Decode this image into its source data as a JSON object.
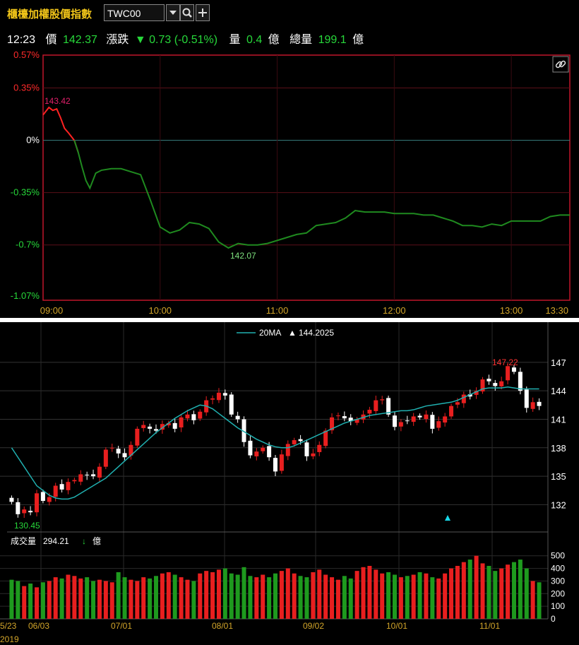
{
  "header": {
    "title": "櫃檯加權股價指數",
    "symbol": "TWC00",
    "time": "12:23",
    "price_label": "價",
    "price": "142.37",
    "change_label": "漲跌",
    "change": "▼ 0.73 (-0.51%)",
    "volume_label": "量",
    "volume": "0.4",
    "volume_unit": "億",
    "total_volume_label": "總量",
    "total_volume": "199.1",
    "total_volume_unit": "億",
    "colors": {
      "title": "#f0c419",
      "down": "#27d83a",
      "up": "#ff2a2a"
    }
  },
  "chart_data": [
    {
      "type": "line",
      "title": "",
      "y_ticks": [
        "0.57%",
        "0.35%",
        "0%",
        "-0.35%",
        "-0.7%",
        "-1.07%"
      ],
      "y_tick_values": [
        0.57,
        0.35,
        0,
        -0.35,
        -0.7,
        -1.07
      ],
      "x_ticks": [
        "09:00",
        "10:00",
        "11:00",
        "12:00",
        "13:00",
        "13:30"
      ],
      "ylim": [
        -1.07,
        0.57
      ],
      "xlim": [
        "09:00",
        "13:30"
      ],
      "high_label": "143.42",
      "low_label": "142.07",
      "reference_line": 0,
      "x": [
        "09:00",
        "09:03",
        "09:05",
        "09:07",
        "09:09",
        "09:11",
        "09:13",
        "09:16",
        "09:18",
        "09:20",
        "09:22",
        "09:24",
        "09:27",
        "09:30",
        "09:35",
        "09:40",
        "09:45",
        "09:50",
        "09:55",
        "10:00",
        "10:05",
        "10:10",
        "10:15",
        "10:20",
        "10:25",
        "10:30",
        "10:35",
        "10:40",
        "10:45",
        "10:50",
        "10:55",
        "11:00",
        "11:05",
        "11:10",
        "11:15",
        "11:20",
        "11:25",
        "11:30",
        "11:35",
        "11:40",
        "11:45",
        "11:50",
        "11:55",
        "12:00",
        "12:05",
        "12:10",
        "12:15",
        "12:20",
        "12:25",
        "12:30",
        "12:35",
        "12:40",
        "12:45",
        "12:50",
        "12:55",
        "13:00",
        "13:05",
        "13:10",
        "13:15",
        "13:20",
        "13:25",
        "13:30"
      ],
      "y": [
        0.17,
        0.22,
        0.2,
        0.21,
        0.15,
        0.08,
        0.05,
        0.0,
        -0.08,
        -0.18,
        -0.27,
        -0.32,
        -0.22,
        -0.2,
        -0.19,
        -0.19,
        -0.21,
        -0.23,
        -0.4,
        -0.58,
        -0.62,
        -0.6,
        -0.55,
        -0.56,
        -0.59,
        -0.68,
        -0.72,
        -0.69,
        -0.7,
        -0.7,
        -0.69,
        -0.67,
        -0.65,
        -0.63,
        -0.62,
        -0.57,
        -0.56,
        -0.55,
        -0.52,
        -0.47,
        -0.48,
        -0.48,
        -0.48,
        -0.49,
        -0.49,
        -0.49,
        -0.5,
        -0.5,
        -0.52,
        -0.54,
        -0.57,
        -0.57,
        -0.58,
        -0.56,
        -0.57,
        -0.54,
        -0.54,
        -0.54,
        -0.54,
        -0.51,
        -0.5,
        -0.5
      ],
      "session_end_plotted": "12:23"
    },
    {
      "type": "candlestick",
      "title": "",
      "legend": {
        "name": "20MA",
        "value": "144.2025",
        "arrow": "▲"
      },
      "y_ticks": [
        "147",
        "144",
        "141",
        "138",
        "135",
        "132"
      ],
      "y_tick_values": [
        147,
        144,
        141,
        138,
        135,
        132
      ],
      "ylim": [
        129.5,
        149
      ],
      "x_ticks": [
        "5/23",
        "06/03",
        "07/01",
        "08/01",
        "09/02",
        "10/01",
        "11/01"
      ],
      "year_label": "2019",
      "high_label": "147.22",
      "low_label": "130.45",
      "close": [
        132.3,
        131.0,
        131.5,
        131.2,
        133.2,
        132.4,
        132.8,
        134.0,
        133.6,
        134.4,
        134.6,
        135.2,
        135.1,
        135.0,
        136.0,
        137.8,
        138.0,
        137.4,
        137.0,
        138.3,
        140.0,
        140.4,
        140.0,
        139.8,
        140.5,
        140.6,
        140.0,
        141.2,
        141.5,
        140.9,
        141.8,
        143.0,
        143.2,
        143.8,
        143.5,
        141.5,
        141.0,
        138.6,
        137.2,
        137.6,
        138.0,
        137.0,
        135.5,
        137.3,
        138.4,
        138.8,
        138.7,
        137.1,
        137.4,
        138.3,
        139.8,
        141.2,
        141.4,
        141.1,
        140.8,
        141.0,
        141.5,
        142.0,
        143.0,
        143.1,
        141.5,
        140.2,
        140.7,
        140.8,
        141.3,
        141.2,
        141.5,
        140.0,
        140.8,
        141.3,
        142.4,
        142.8,
        143.6,
        143.4,
        144.0,
        145.2,
        145.0,
        144.5,
        145.0,
        146.6,
        146.0,
        144.0,
        142.2,
        142.8,
        142.4
      ],
      "ma20": [
        138.0,
        137.0,
        136.0,
        135.0,
        134.0,
        133.5,
        133.0,
        132.7,
        132.6,
        132.6,
        132.8,
        133.2,
        133.6,
        134.0,
        134.4,
        134.8,
        135.4,
        136.0,
        136.6,
        137.2,
        137.8,
        138.4,
        139.0,
        139.6,
        140.1,
        140.6,
        141.1,
        141.5,
        141.9,
        142.2,
        142.5,
        142.4,
        142.1,
        141.6,
        141.1,
        140.6,
        140.1,
        139.7,
        139.3,
        138.9,
        138.6,
        138.3,
        138.1,
        138.0,
        138.0,
        138.2,
        138.5,
        138.8,
        139.1,
        139.4,
        139.7,
        140.0,
        140.3,
        140.6,
        140.8,
        141.0,
        141.2,
        141.4,
        141.5,
        141.6,
        141.7,
        141.8,
        141.9,
        141.9,
        142.0,
        142.2,
        142.4,
        142.5,
        142.6,
        142.7,
        142.8,
        143.0,
        143.3,
        143.6,
        143.9,
        144.2,
        144.3,
        144.3,
        144.3,
        144.4,
        144.3,
        144.2,
        144.2,
        144.2,
        144.2
      ],
      "volume_label": "成交量",
      "volume_value": "294.21",
      "volume_arrow": "↓",
      "volume_unit": "億",
      "volume_ticks": [
        "500",
        "400",
        "300",
        "200",
        "100",
        "0"
      ],
      "volume_tick_values": [
        500,
        400,
        300,
        200,
        100,
        0
      ],
      "volume_ylim": [
        0,
        560
      ],
      "volume": [
        310,
        300,
        260,
        280,
        250,
        290,
        300,
        330,
        320,
        350,
        340,
        320,
        330,
        300,
        310,
        300,
        290,
        370,
        330,
        310,
        300,
        330,
        320,
        340,
        360,
        370,
        350,
        330,
        310,
        300,
        360,
        380,
        370,
        390,
        400,
        360,
        350,
        410,
        340,
        330,
        350,
        330,
        360,
        380,
        400,
        360,
        340,
        330,
        370,
        390,
        350,
        330,
        310,
        340,
        320,
        380,
        410,
        420,
        390,
        360,
        370,
        350,
        330,
        340,
        350,
        370,
        360,
        330,
        320,
        360,
        400,
        420,
        450,
        470,
        500,
        440,
        420,
        380,
        400,
        430,
        450,
        470,
        400,
        300,
        290
      ]
    }
  ]
}
